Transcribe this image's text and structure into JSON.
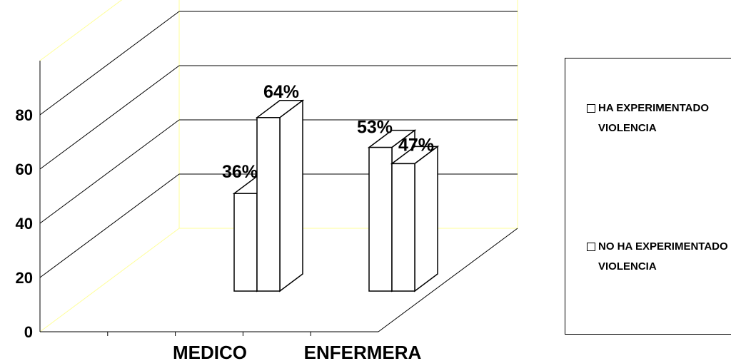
{
  "chart_data": {
    "type": "bar",
    "title": "",
    "xlabel": "",
    "ylabel": "",
    "ylim": [
      0,
      100
    ],
    "yticks": [
      0,
      20,
      40,
      60,
      80
    ],
    "ytick_labels": [
      "0",
      "20",
      "40",
      "60",
      "80"
    ],
    "categories": [
      "MEDICO",
      "ENFERMERA"
    ],
    "series": [
      {
        "name": "HA EXPERIMENTADO VIOLENCIA",
        "values": [
          36,
          53
        ],
        "labels": [
          "36%",
          "53%"
        ]
      },
      {
        "name": "NO HA EXPERIMENTADO VIOLENCIA",
        "values": [
          64,
          47
        ],
        "labels": [
          "64%",
          "47%"
        ]
      }
    ],
    "legend_position": "right",
    "grid": true,
    "style": "3d-clustered-column"
  },
  "colors": {
    "bar_fill": "#ffffff",
    "bar_edge": "#000000",
    "wall_edge": "#ffff99",
    "gridline": "#000000"
  }
}
